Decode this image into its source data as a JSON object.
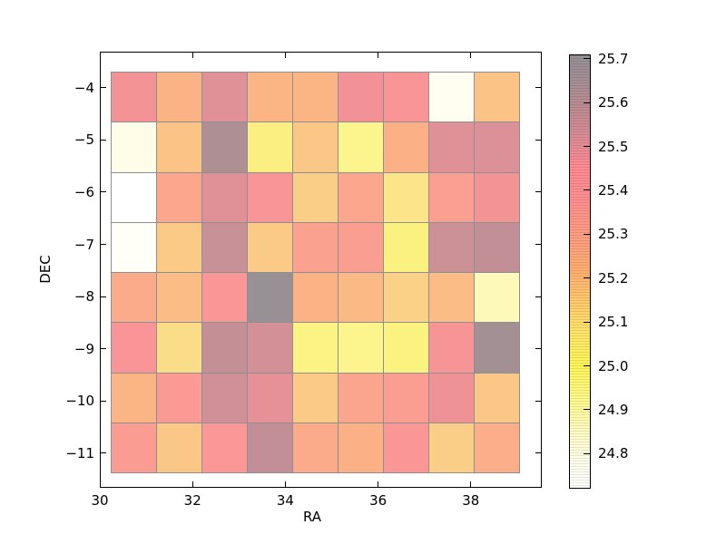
{
  "figure": {
    "background": "#ffffff"
  },
  "axes": {
    "xlabel": "RA",
    "ylabel": "DEC",
    "x_tick_labels": [
      "30",
      "32",
      "34",
      "36",
      "38"
    ],
    "y_tick_labels": [
      "−4",
      "−5",
      "−6",
      "−7",
      "−8",
      "−9",
      "−10",
      "−11"
    ]
  },
  "chart_data": {
    "type": "heatmap",
    "title": "",
    "xlabel": "RA",
    "ylabel": "DEC",
    "x_axis_range": [
      30.0,
      39.53
    ],
    "y_axis_range": [
      -11.66,
      -3.31
    ],
    "x_ticks": [
      30,
      32,
      34,
      36,
      38
    ],
    "y_ticks": [
      -4,
      -5,
      -6,
      -7,
      -8,
      -9,
      -10,
      -11
    ],
    "x_edges": [
      30.23,
      31.21,
      32.19,
      33.17,
      34.15,
      35.13,
      36.11,
      37.09,
      38.07,
      39.05
    ],
    "y_edges": [
      -3.72,
      -4.67,
      -5.62,
      -6.58,
      -7.53,
      -8.48,
      -9.43,
      -10.39,
      -11.34
    ],
    "rows_order": "top-to-bottom (DEC -4 band first)",
    "values": [
      [
        25.42,
        25.22,
        25.47,
        25.21,
        25.21,
        25.43,
        25.39,
        24.78,
        25.17
      ],
      [
        24.8,
        25.17,
        25.61,
        25.02,
        25.16,
        24.97,
        25.23,
        25.47,
        25.48
      ],
      [
        24.72,
        25.28,
        25.47,
        25.39,
        25.14,
        25.28,
        25.07,
        25.32,
        25.42
      ],
      [
        24.75,
        25.15,
        25.53,
        25.15,
        25.31,
        25.33,
        25.01,
        25.52,
        25.55
      ],
      [
        25.26,
        25.19,
        25.38,
        25.69,
        25.22,
        25.2,
        25.13,
        25.19,
        24.89
      ],
      [
        25.39,
        25.1,
        25.54,
        25.5,
        24.99,
        24.97,
        25.0,
        25.41,
        25.64
      ],
      [
        25.21,
        25.35,
        25.51,
        25.46,
        25.15,
        25.29,
        25.33,
        25.44,
        25.16
      ],
      [
        25.34,
        25.16,
        25.37,
        25.55,
        25.26,
        25.23,
        25.38,
        25.14,
        25.24
      ]
    ],
    "grid_line_color": "#8f8f8f",
    "colorbar": {
      "vmin": 24.72,
      "vmax": 25.71,
      "tick_values": [
        25.7,
        25.6,
        25.5,
        25.4,
        25.3,
        25.2,
        25.1,
        25.0,
        24.9,
        24.8
      ],
      "tick_labels": [
        "25.7",
        "25.6",
        "25.5",
        "25.4",
        "25.3",
        "25.2",
        "25.1",
        "25.0",
        "24.9",
        "24.8"
      ],
      "colormap_stops": [
        [
          24.72,
          "#ffffff"
        ],
        [
          24.78,
          "#fffef0"
        ],
        [
          24.85,
          "#fefbd0"
        ],
        [
          24.92,
          "#fdf8a8"
        ],
        [
          25.0,
          "#fbf37f"
        ],
        [
          25.08,
          "#fbe389"
        ],
        [
          25.15,
          "#fbca87"
        ],
        [
          25.22,
          "#fbb285"
        ],
        [
          25.3,
          "#fba28f"
        ],
        [
          25.38,
          "#fb9697"
        ],
        [
          25.43,
          "#f29296"
        ],
        [
          25.48,
          "#dc9097"
        ],
        [
          25.53,
          "#c89097"
        ],
        [
          25.58,
          "#b68e93"
        ],
        [
          25.64,
          "#a39094"
        ],
        [
          25.71,
          "#949094"
        ]
      ]
    }
  }
}
